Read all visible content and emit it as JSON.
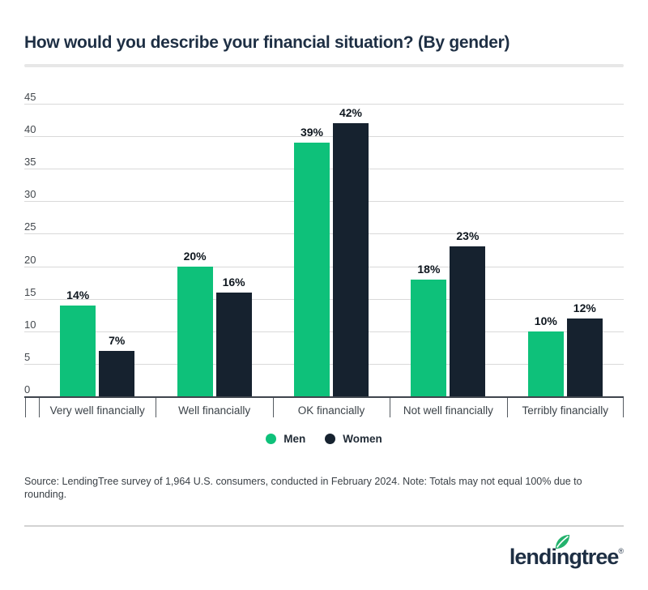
{
  "page": {
    "title": "How would you describe your financial situation? (By gender)",
    "source_note": "Source: LendingTree survey of 1,964 U.S. consumers, conducted in February 2024. Note: Totals may not equal 100% due to rounding.",
    "logo_text": "lendingtree",
    "logo_reg": "®"
  },
  "colors": {
    "men_green": "#0ec17a",
    "women_navy": "#16222f",
    "title_navy": "#1e2f44",
    "gridline_gray": "#d9d9d9",
    "axis_dark": "#3f454d",
    "leaf_green": "#24b26d"
  },
  "chart_data": {
    "type": "bar",
    "title": "How would you describe your financial situation? (By gender)",
    "categories": [
      "Very well financially",
      "Well financially",
      "OK financially",
      "Not well financially",
      "Terribly financially"
    ],
    "series": [
      {
        "name": "Men",
        "color": "#0ec17a",
        "values": [
          14,
          20,
          39,
          18,
          10
        ]
      },
      {
        "name": "Women",
        "color": "#16222f",
        "values": [
          7,
          16,
          42,
          23,
          12
        ]
      }
    ],
    "value_suffix": "%",
    "xlabel": "",
    "ylabel": "",
    "ylim": [
      0,
      45
    ],
    "ytick_step": 5,
    "grid": true,
    "legend_position": "bottom"
  }
}
